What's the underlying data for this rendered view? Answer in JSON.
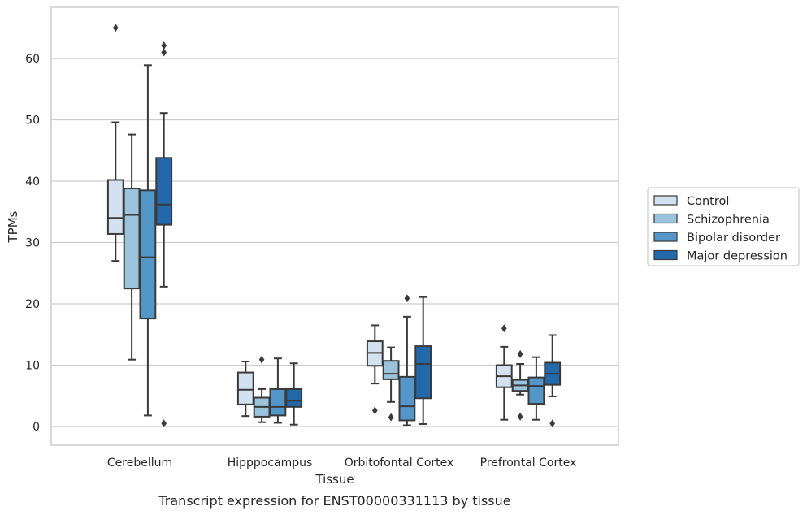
{
  "chart_data": {
    "type": "box",
    "caption": "Transcript expression for ENST00000331113 by tissue",
    "xlabel": "Tissue",
    "ylabel": "TPMs",
    "ylim": [
      -3,
      68
    ],
    "yticks": [
      0,
      10,
      20,
      30,
      40,
      50,
      60
    ],
    "grid": "horizontal",
    "legend_position": "right",
    "categories": [
      "Cerebellum",
      "Hipppocampus",
      "Orbitofontal Cortex",
      "Prefrontal Cortex"
    ],
    "series": [
      {
        "name": "Control",
        "color": "#d3e1f0",
        "boxes": [
          {
            "whisker_low": 27,
            "q1": 31.4,
            "median": 34,
            "q3": 40.2,
            "whisker_high": 49.6,
            "outliers": [
              65
            ]
          },
          {
            "whisker_low": 1.7,
            "q1": 3.6,
            "median": 6,
            "q3": 8.8,
            "whisker_high": 10.6,
            "outliers": []
          },
          {
            "whisker_low": 7,
            "q1": 9.9,
            "median": 12,
            "q3": 13.9,
            "whisker_high": 16.5,
            "outliers": [
              2.6
            ]
          },
          {
            "whisker_low": 1.1,
            "q1": 6.4,
            "median": 8.2,
            "q3": 10,
            "whisker_high": 13,
            "outliers": [
              16
            ]
          }
        ]
      },
      {
        "name": "Schizophrenia",
        "color": "#9cc3dc",
        "boxes": [
          {
            "whisker_low": 10.9,
            "q1": 22.5,
            "median": 34.5,
            "q3": 38.8,
            "whisker_high": 47.6,
            "outliers": []
          },
          {
            "whisker_low": 0.7,
            "q1": 1.6,
            "median": 3.2,
            "q3": 4.7,
            "whisker_high": 6.1,
            "outliers": [
              10.9
            ]
          },
          {
            "whisker_low": 4,
            "q1": 7.7,
            "median": 8.6,
            "q3": 10.7,
            "whisker_high": 12.9,
            "outliers": [
              1.5
            ]
          },
          {
            "whisker_low": 5.2,
            "q1": 5.8,
            "median": 6.7,
            "q3": 7.6,
            "whisker_high": 10.2,
            "outliers": [
              11.8,
              1.6
            ]
          }
        ]
      },
      {
        "name": "Bipolar disorder",
        "color": "#5596c8",
        "boxes": [
          {
            "whisker_low": 1.8,
            "q1": 17.6,
            "median": 27.6,
            "q3": 38.5,
            "whisker_high": 58.9,
            "outliers": []
          },
          {
            "whisker_low": 0.6,
            "q1": 1.8,
            "median": 3.2,
            "q3": 6.1,
            "whisker_high": 11.1,
            "outliers": []
          },
          {
            "whisker_low": 0.2,
            "q1": 1,
            "median": 3.3,
            "q3": 8.1,
            "whisker_high": 17.9,
            "outliers": [
              20.9
            ]
          },
          {
            "whisker_low": 1.1,
            "q1": 3.7,
            "median": 6.6,
            "q3": 8,
            "whisker_high": 11.3,
            "outliers": []
          }
        ]
      },
      {
        "name": "Major depression",
        "color": "#2368ab",
        "boxes": [
          {
            "whisker_low": 22.8,
            "q1": 32.9,
            "median": 36.2,
            "q3": 43.8,
            "whisker_high": 51.1,
            "outliers": [
              62.1,
              61,
              0.5
            ]
          },
          {
            "whisker_low": 0.3,
            "q1": 3.2,
            "median": 4.2,
            "q3": 6.1,
            "whisker_high": 10.3,
            "outliers": []
          },
          {
            "whisker_low": 0.4,
            "q1": 4.6,
            "median": 10.2,
            "q3": 13.1,
            "whisker_high": 21.1,
            "outliers": []
          },
          {
            "whisker_low": 4.9,
            "q1": 6.8,
            "median": 8.6,
            "q3": 10.4,
            "whisker_high": 14.9,
            "outliers": [
              0.5
            ]
          }
        ]
      }
    ]
  }
}
